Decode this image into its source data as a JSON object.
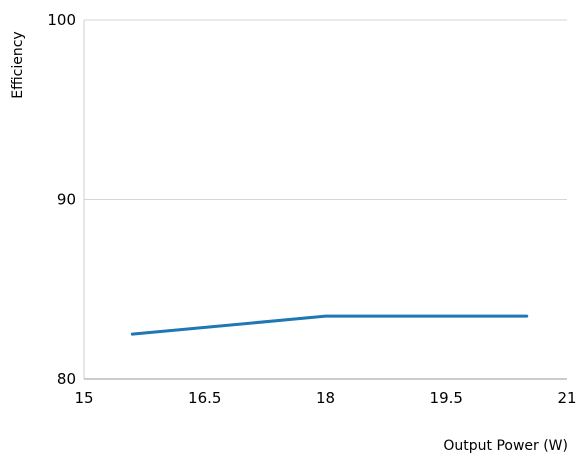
{
  "chart_data": {
    "type": "line",
    "title": "",
    "xlabel": "Output Power (W)",
    "ylabel": "Efficiency",
    "xlim": [
      15,
      21
    ],
    "ylim": [
      80,
      100
    ],
    "x_ticks": [
      15,
      16.5,
      18,
      19.5,
      21
    ],
    "x_tick_labels": [
      "15",
      "16.5",
      "18",
      "19.5",
      "21"
    ],
    "y_ticks": [
      80,
      90,
      100
    ],
    "y_tick_labels": [
      "80",
      "90",
      "100"
    ],
    "grid": "horizontal",
    "legend": "none",
    "series": [
      {
        "color": "#1f77b4",
        "x": [
          15.6,
          18,
          20.5
        ],
        "y": [
          82.5,
          83.5,
          83.5
        ]
      }
    ]
  }
}
